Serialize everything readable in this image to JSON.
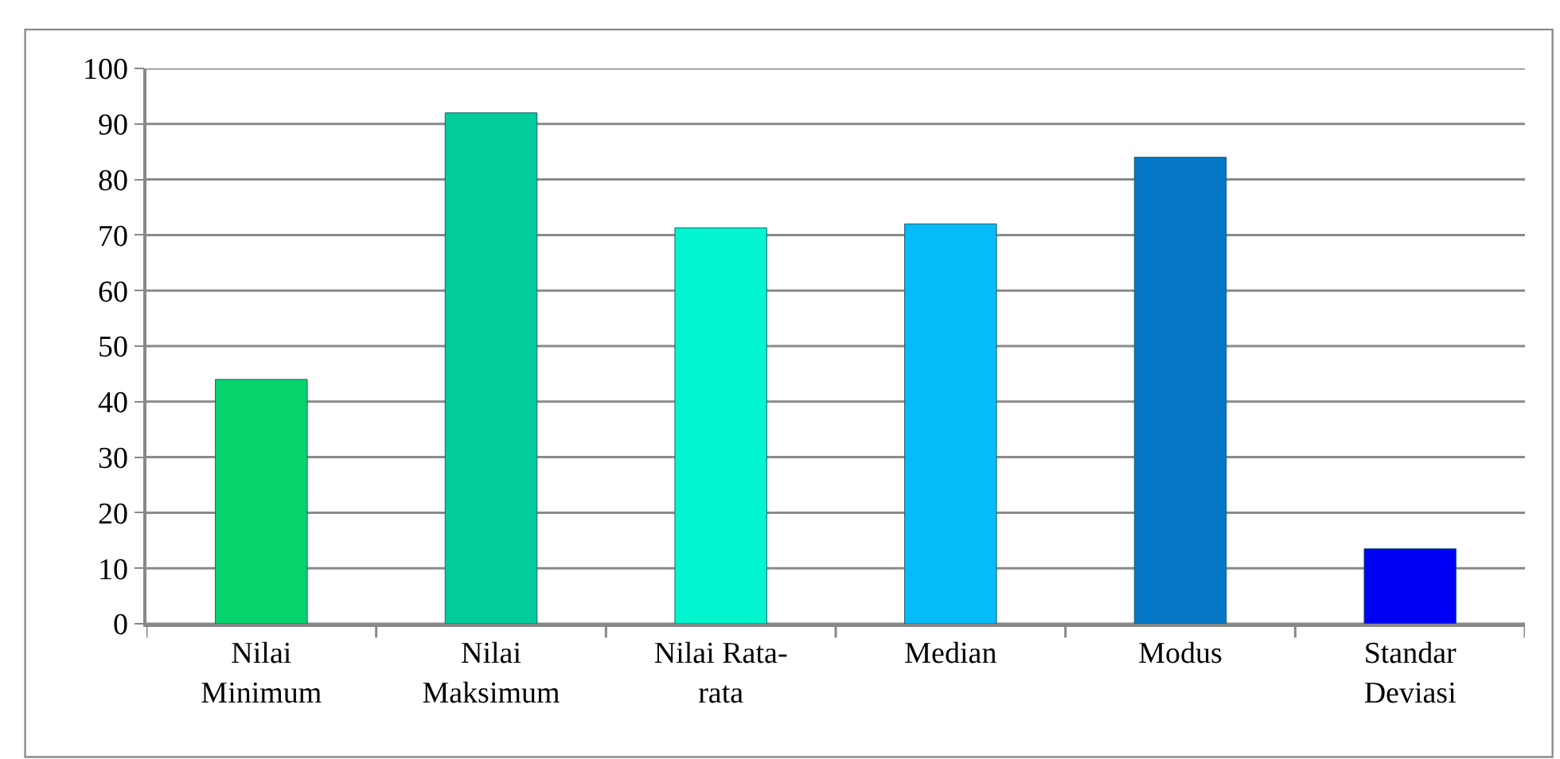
{
  "chart_data": {
    "type": "bar",
    "categories": [
      "Nilai Minimum",
      "Nilai Maksimum",
      "Nilai Rata-rata",
      "Median",
      "Modus",
      "Standar Deviasi"
    ],
    "values": [
      44,
      92,
      71.3,
      72,
      84,
      13.5
    ],
    "colors": [
      "#05d46c",
      "#03cc9c",
      "#03f5cf",
      "#05bcf8",
      "#0577c6",
      "#0000f5"
    ],
    "ylim": [
      0,
      100
    ],
    "yticks": [
      0,
      10,
      20,
      30,
      40,
      50,
      60,
      70,
      80,
      90,
      100
    ],
    "grid": "y"
  }
}
